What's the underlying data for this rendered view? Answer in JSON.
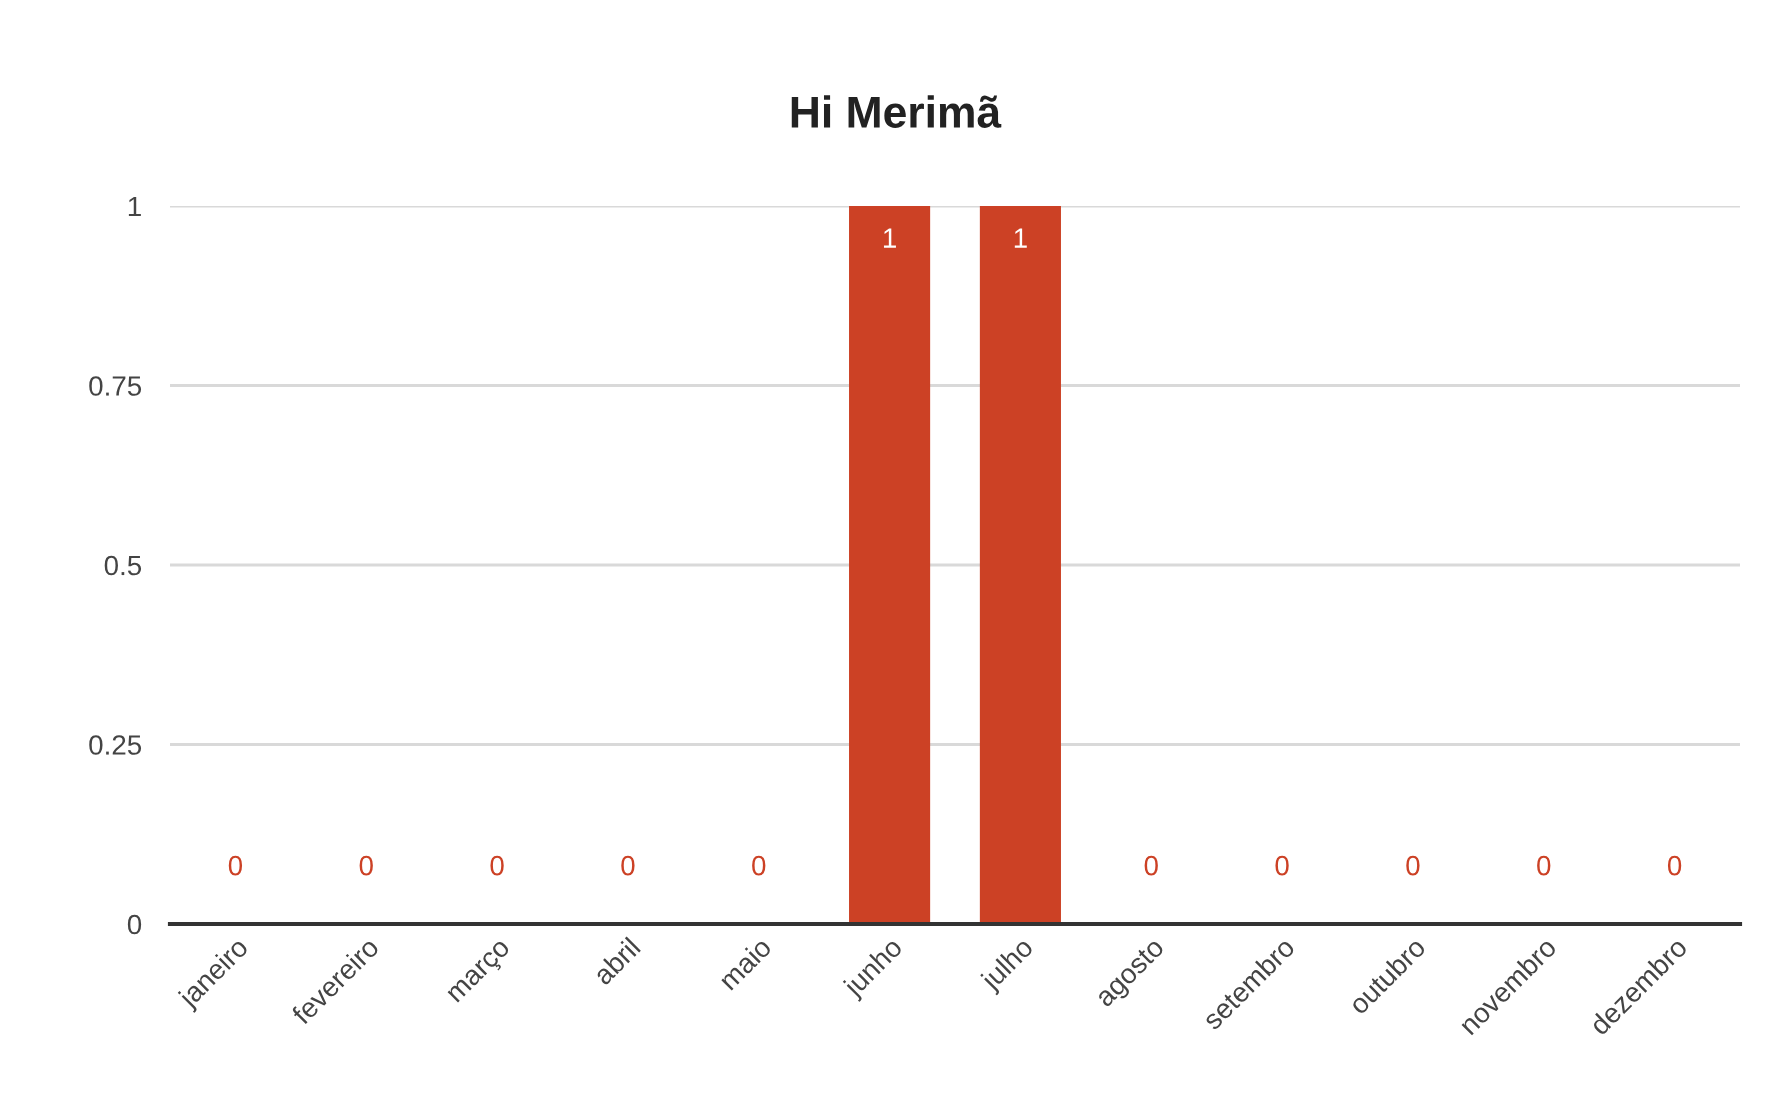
{
  "chart_data": {
    "type": "bar",
    "title": "Hi Merimã",
    "categories": [
      "janeiro",
      "fevereiro",
      "março",
      "abril",
      "maio",
      "junho",
      "julho",
      "agosto",
      "setembro",
      "outubro",
      "novembro",
      "dezembro"
    ],
    "values": [
      0,
      0,
      0,
      0,
      0,
      1,
      1,
      0,
      0,
      0,
      0,
      0
    ],
    "color": "#cc4125",
    "ylim": [
      0,
      1
    ],
    "yticks": [
      0,
      0.25,
      0.5,
      0.75,
      1
    ],
    "grid": "y",
    "data_labels": true
  }
}
